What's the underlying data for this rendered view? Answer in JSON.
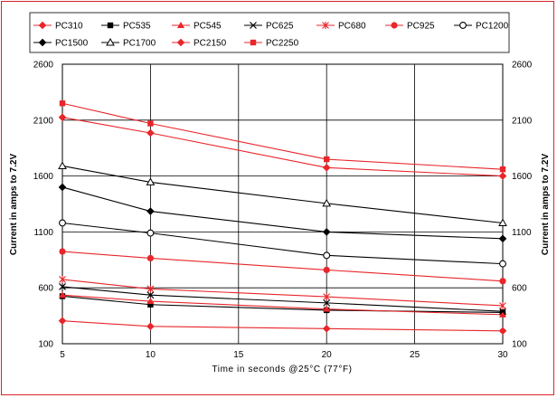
{
  "chart_data": {
    "type": "line",
    "xlabel": "Time in seconds @25°C (77°F)",
    "ylabel_left": "Current in amps to 7.2V",
    "ylabel_right": "Current in amps to 7.2V",
    "xlim": [
      5,
      30
    ],
    "ylim": [
      100,
      2600
    ],
    "x_ticks": [
      "5",
      "10",
      "15",
      "20",
      "25",
      "30"
    ],
    "y_ticks": [
      "100",
      "600",
      "1100",
      "1600",
      "2100",
      "2600"
    ],
    "grid": true,
    "legend_position": "top",
    "x": [
      5,
      10,
      20,
      30
    ],
    "series": [
      {
        "name": "PC310",
        "color": "#e8262b",
        "marker": "diamond",
        "values": [
          305,
          255,
          235,
          215
        ]
      },
      {
        "name": "PC535",
        "color": "#000000",
        "marker": "square",
        "values": [
          525,
          450,
          400,
          380
        ]
      },
      {
        "name": "PC545",
        "color": "#e8262b",
        "marker": "triangle",
        "values": [
          535,
          480,
          410,
          360
        ]
      },
      {
        "name": "PC625",
        "color": "#000000",
        "marker": "x",
        "values": [
          610,
          535,
          465,
          390
        ]
      },
      {
        "name": "PC680",
        "color": "#e8262b",
        "marker": "star",
        "values": [
          675,
          590,
          520,
          440
        ]
      },
      {
        "name": "PC925",
        "color": "#e8262b",
        "marker": "circle",
        "values": [
          925,
          865,
          760,
          660
        ]
      },
      {
        "name": "PC1200",
        "color": "#000000",
        "marker": "circle-open",
        "values": [
          1180,
          1090,
          890,
          815
        ]
      },
      {
        "name": "PC1500",
        "color": "#000000",
        "marker": "diamond",
        "values": [
          1500,
          1285,
          1100,
          1040
        ]
      },
      {
        "name": "PC1700",
        "color": "#000000",
        "marker": "triangle-open",
        "values": [
          1690,
          1545,
          1355,
          1180
        ]
      },
      {
        "name": "PC2150",
        "color": "#e8262b",
        "marker": "diamond",
        "values": [
          2125,
          1985,
          1675,
          1600
        ]
      },
      {
        "name": "PC2250",
        "color": "#e8262b",
        "marker": "square",
        "values": [
          2250,
          2070,
          1750,
          1660
        ]
      }
    ]
  }
}
